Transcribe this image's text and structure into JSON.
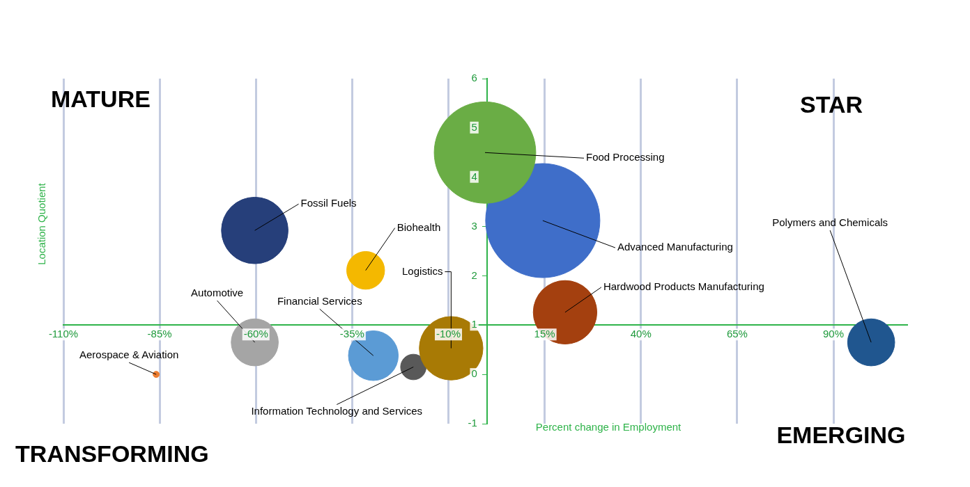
{
  "chart_data": {
    "type": "bubble",
    "xlabel": "Percent change in Employment",
    "ylabel": "Location Quotient",
    "xlim": [
      -110,
      109
    ],
    "xticks": [
      {
        "value": -110,
        "label": "-110%"
      },
      {
        "value": -85,
        "label": "-85%"
      },
      {
        "value": -60,
        "label": "-60%"
      },
      {
        "value": -35,
        "label": "-35%"
      },
      {
        "value": -10,
        "label": "-10%"
      },
      {
        "value": 15,
        "label": "15%"
      },
      {
        "value": 40,
        "label": "40%"
      },
      {
        "value": 65,
        "label": "65%"
      },
      {
        "value": 90,
        "label": "90%"
      }
    ],
    "ylim": [
      -1,
      6
    ],
    "yticks": [
      -1,
      0,
      1,
      2,
      3,
      4,
      5,
      6
    ],
    "grid": "x",
    "legend": false,
    "series": [
      {
        "name": "Food Processing",
        "color": "#6aad45",
        "x": [
          -0.5
        ],
        "values": [
          4.5
        ],
        "sizes": [
          0.79
        ]
      },
      {
        "name": "Advanced Manufacturing",
        "color": "#3f6ec9",
        "x": [
          14.5
        ],
        "values": [
          3.12
        ],
        "sizes": [
          1
        ]
      },
      {
        "name": "Fossil Fuels",
        "color": "#263f7a",
        "x": [
          -60.3
        ],
        "values": [
          2.92
        ],
        "sizes": [
          0.34
        ]
      },
      {
        "name": "Biohealth",
        "color": "#f4b800",
        "x": [
          -31.5
        ],
        "values": [
          2.11
        ],
        "sizes": [
          0.11
        ]
      },
      {
        "name": "Logistics",
        "color": "#a87a05",
        "x": [
          -9.3
        ],
        "values": [
          0.53
        ],
        "sizes": [
          0.31
        ]
      },
      {
        "name": "Hardwood Products Manufacturing",
        "color": "#a4400f",
        "x": [
          20.3
        ],
        "values": [
          1.26
        ],
        "sizes": [
          0.31
        ]
      },
      {
        "name": "Polymers and Chemicals",
        "color": "#20568f",
        "x": [
          99.8
        ],
        "values": [
          0.65
        ],
        "sizes": [
          0.17
        ]
      },
      {
        "name": "Automotive",
        "color": "#a5a5a5",
        "x": [
          -60.3
        ],
        "values": [
          0.65
        ],
        "sizes": [
          0.17
        ]
      },
      {
        "name": "Financial Services",
        "color": "#5b9bd5",
        "x": [
          -29.5
        ],
        "values": [
          0.38
        ],
        "sizes": [
          0.19
        ]
      },
      {
        "name": "Information Technology and Services",
        "color": "#595959",
        "x": [
          -19.1
        ],
        "values": [
          0.15
        ],
        "sizes": [
          0.05
        ]
      },
      {
        "name": "Aerospace & Aviation",
        "color": "#ed7d31",
        "x": [
          -85.9
        ],
        "values": [
          0.0
        ],
        "sizes": [
          0.003
        ]
      }
    ],
    "annotations": [
      "MATURE",
      "STAR",
      "TRANSFORMING",
      "EMERGING"
    ]
  }
}
